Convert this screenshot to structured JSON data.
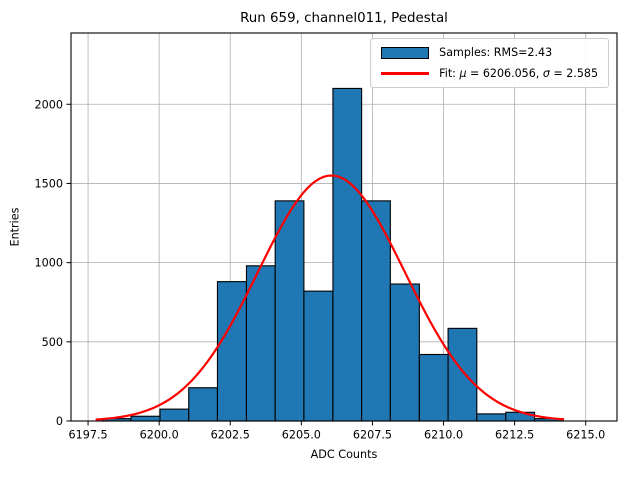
{
  "chart_data": {
    "type": "histogram",
    "title": "Run 659, channel011, Pedestal",
    "xlabel": "ADC Counts",
    "ylabel": "Entries",
    "xlim": [
      6196.9,
      6216.1
    ],
    "ylim": [
      0,
      2450
    ],
    "xticks": [
      6197.5,
      6200.0,
      6202.5,
      6205.0,
      6207.5,
      6210.0,
      6212.5,
      6215.0
    ],
    "xtick_labels": [
      "6197.5",
      "6200.0",
      "6202.5",
      "6205.0",
      "6207.5",
      "6210.0",
      "6212.5",
      "6215.0"
    ],
    "yticks": [
      0,
      500,
      1000,
      1500,
      2000
    ],
    "ytick_labels": [
      "0",
      "500",
      "1000",
      "1500",
      "2000"
    ],
    "grid": true,
    "legend_position": "upper right",
    "colors": {
      "bar_fill": "#1f77b4",
      "bar_edge": "#000000",
      "fit_line": "#ff0000",
      "grid_line": "#b0b0b0",
      "spine": "#000000"
    },
    "bins": {
      "edges": [
        6198.0,
        6199.01,
        6200.03,
        6201.04,
        6202.05,
        6203.07,
        6204.08,
        6205.09,
        6206.11,
        6207.12,
        6208.13,
        6209.15,
        6210.16,
        6211.17,
        6212.19,
        6213.2,
        6214.21
      ],
      "counts": [
        15,
        30,
        75,
        210,
        880,
        980,
        1390,
        820,
        2100,
        1390,
        865,
        420,
        585,
        45,
        55,
        15
      ]
    },
    "fit": {
      "mu": 6206.056,
      "sigma": 2.585,
      "amplitude": 1550,
      "x_start": 6197.8,
      "x_end": 6214.2
    },
    "legend": {
      "samples_label": "Samples: RMS=2.43",
      "fit_label_parts": [
        {
          "text": "Fit: "
        },
        {
          "text": "μ",
          "italic": true
        },
        {
          "text": " = 6206.056, "
        },
        {
          "text": "σ",
          "italic": true
        },
        {
          "text": " = 2.585"
        }
      ]
    }
  }
}
